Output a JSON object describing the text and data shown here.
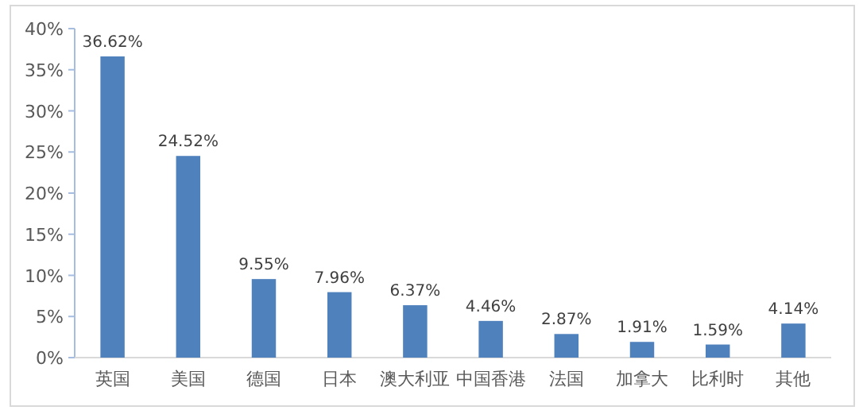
{
  "chart_data": {
    "type": "bar",
    "categories": [
      "英国",
      "美国",
      "德国",
      "日本",
      "澳大利亚",
      "中国香港",
      "法国",
      "加拿大",
      "比利时",
      "其他"
    ],
    "values": [
      36.62,
      24.52,
      9.55,
      7.96,
      6.37,
      4.46,
      2.87,
      1.91,
      1.59,
      4.14
    ],
    "color": "#4f81bd",
    "value_labels": [
      "36.62%",
      "24.52%",
      "9.55%",
      "7.96%",
      "6.37%",
      "4.46%",
      "2.87%",
      "1.91%",
      "1.59%",
      "4.14%"
    ],
    "ylim": [
      0,
      40
    ],
    "yticks": [
      {
        "value": 0,
        "label": "0%"
      },
      {
        "value": 5,
        "label": "5%"
      },
      {
        "value": 10,
        "label": "10%"
      },
      {
        "value": 15,
        "label": "15%"
      },
      {
        "value": 20,
        "label": "20%"
      },
      {
        "value": 25,
        "label": "25%"
      },
      {
        "value": 30,
        "label": "30%"
      },
      {
        "value": 35,
        "label": "35%"
      },
      {
        "value": 40,
        "label": "40%"
      }
    ],
    "grid": false
  }
}
